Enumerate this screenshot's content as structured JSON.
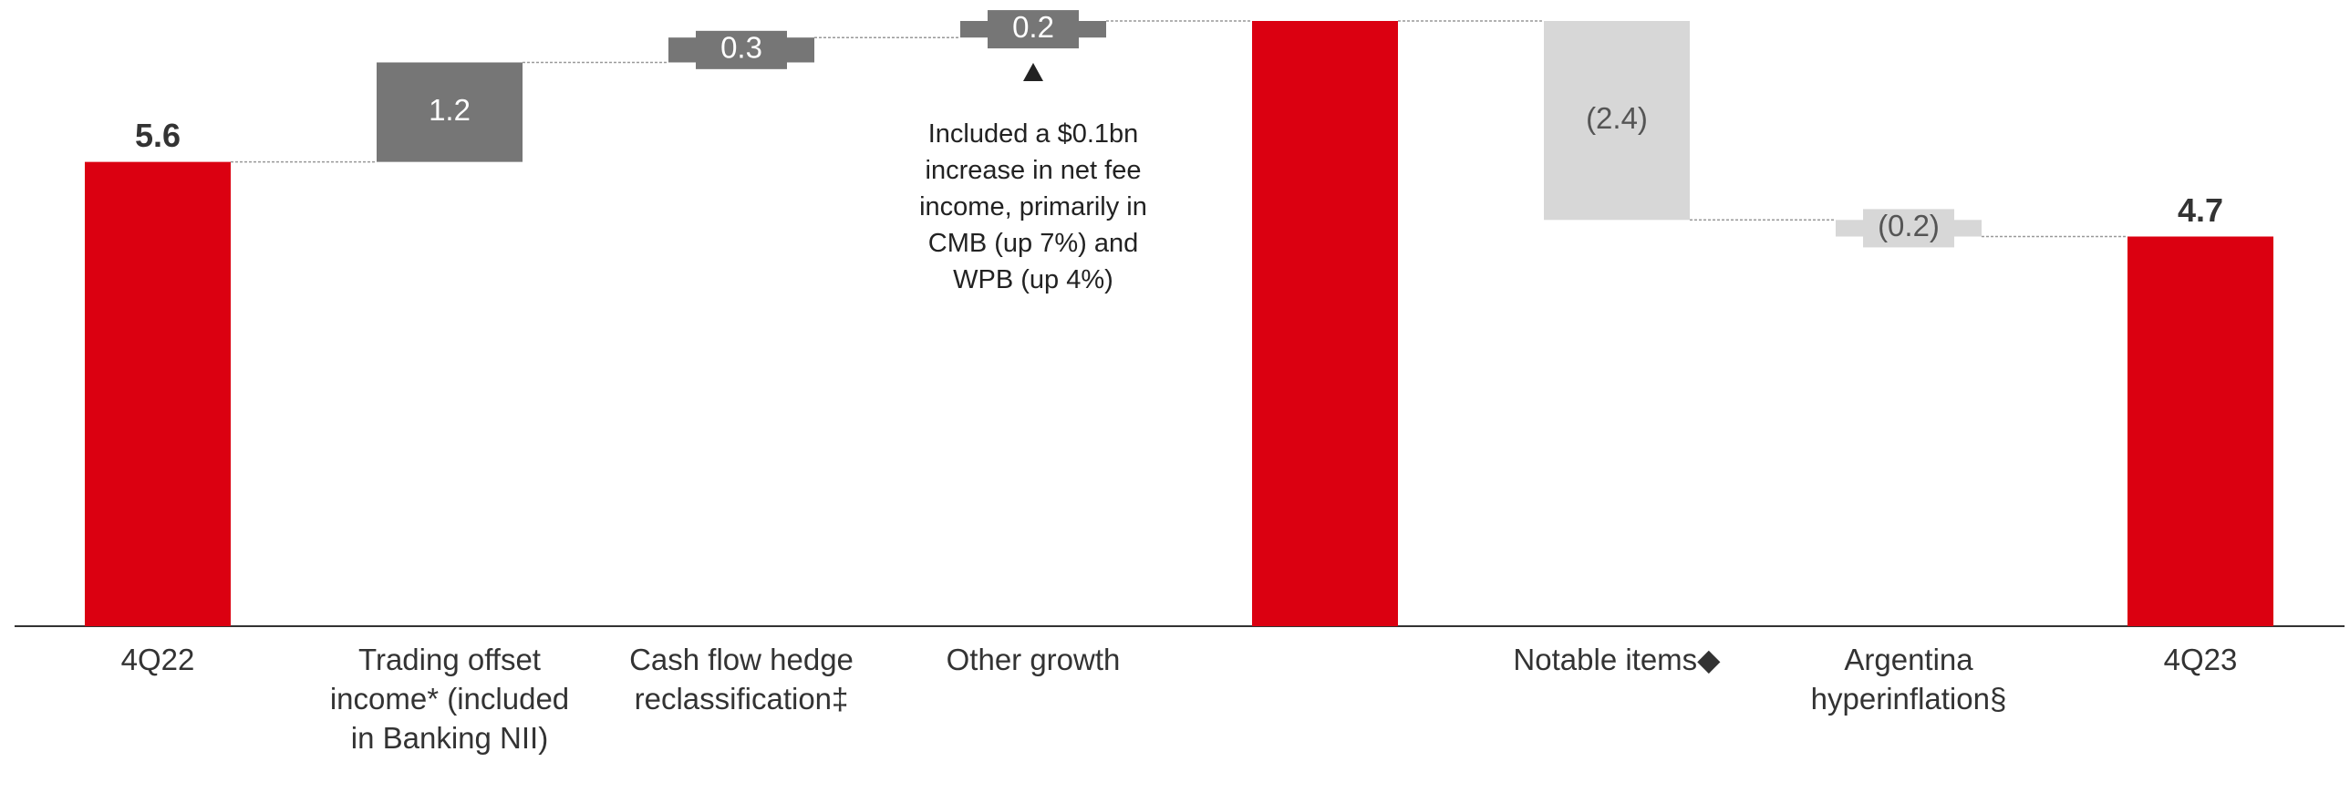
{
  "chart_data": {
    "type": "waterfall",
    "categories": [
      "4Q22",
      "Trading offset income* (included in Banking NII)",
      "Cash flow hedge reclassification‡",
      "Other growth",
      null,
      "Notable items◆",
      "Argentina hyperinflation§",
      "4Q23"
    ],
    "values": [
      5.6,
      1.2,
      0.3,
      0.2,
      7.3,
      -2.4,
      -0.2,
      4.7
    ],
    "value_labels": [
      "5.6",
      "1.2",
      "0.3",
      "0.2",
      null,
      "(2.4)",
      "(0.2)",
      "4.7"
    ],
    "is_total": [
      true,
      false,
      false,
      false,
      true,
      false,
      false,
      true
    ],
    "colors": [
      "#db0011",
      "#767676",
      "#767676",
      "#767676",
      "#db0011",
      "#d7d7d7",
      "#d7d7d7",
      "#db0011"
    ],
    "annotations": [
      {
        "category_index": 3,
        "text": "Included a $0.1bn increase in net fee income, primarily in CMB (up 7%) and WPB (up 4%)"
      }
    ]
  }
}
